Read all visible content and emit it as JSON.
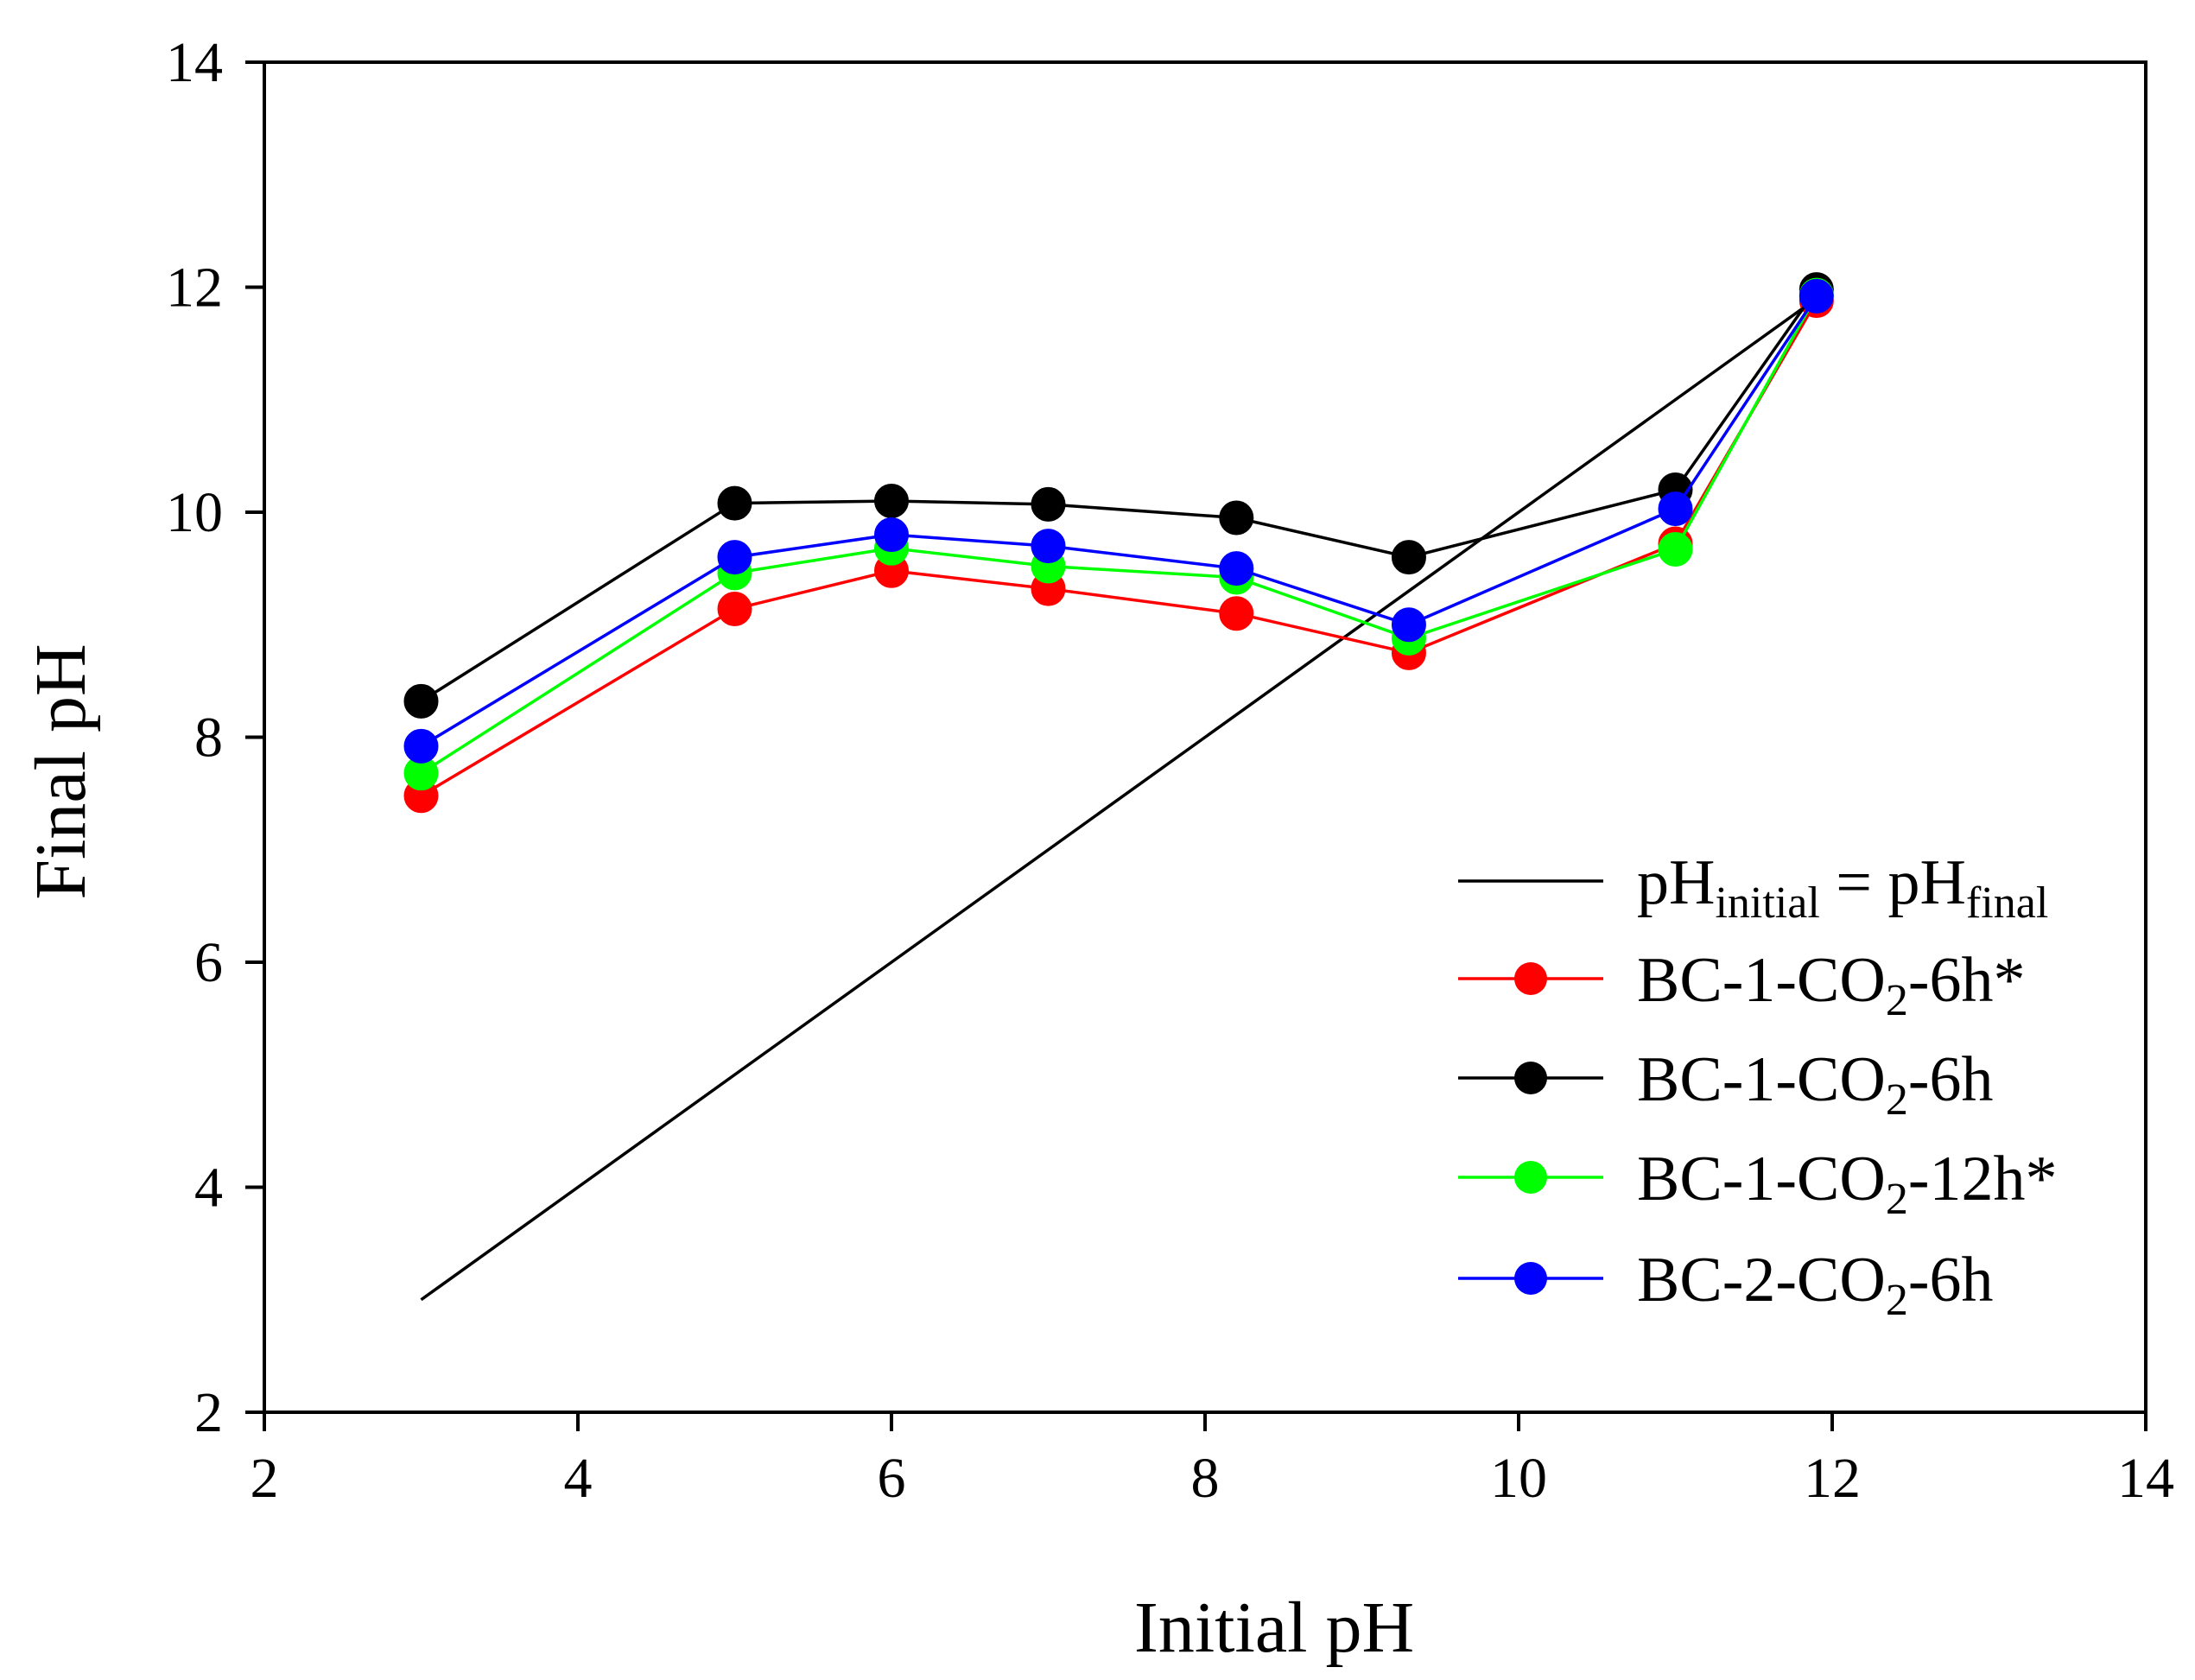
{
  "chart_data": {
    "type": "line",
    "title": "",
    "xlabel": "Initial pH",
    "ylabel": "Final pH",
    "xlim": [
      2,
      14
    ],
    "ylim": [
      2,
      14
    ],
    "xticks": [
      2,
      4,
      6,
      8,
      10,
      12,
      14
    ],
    "yticks": [
      2,
      4,
      6,
      8,
      10,
      12,
      14
    ],
    "xtick_labels": [
      "2",
      "4",
      "6",
      "8",
      "10",
      "12",
      "14"
    ],
    "ytick_labels": [
      "2",
      "4",
      "6",
      "8",
      "10",
      "12",
      "14"
    ],
    "grid": false,
    "legend_position": "right-center",
    "reference_line": {
      "name": "pH_initial = pH_final",
      "label_parts": [
        "pH",
        "initial",
        " = pH",
        "final"
      ],
      "color": "#000000",
      "x": [
        3,
        12
      ],
      "y": [
        3,
        12
      ]
    },
    "series": [
      {
        "name": "BC-1-CO2-6h*",
        "label_parts": [
          "BC-1-CO",
          "2",
          "-6h*"
        ],
        "color": "#ff0000",
        "x": [
          3.0,
          5.0,
          6.0,
          7.0,
          8.2,
          9.3,
          11.0,
          11.9
        ],
        "y": [
          7.48,
          9.14,
          9.48,
          9.32,
          9.1,
          8.75,
          9.72,
          11.88
        ]
      },
      {
        "name": "BC-1-CO2-6h",
        "label_parts": [
          "BC-1-CO",
          "2",
          "-6h"
        ],
        "color": "#000000",
        "x": [
          3.0,
          5.0,
          6.0,
          7.0,
          8.2,
          9.3,
          11.0,
          11.9
        ],
        "y": [
          8.32,
          10.08,
          10.1,
          10.07,
          9.95,
          9.6,
          10.2,
          11.98
        ]
      },
      {
        "name": "BC-1-CO2-12h*",
        "label_parts": [
          "BC-1-CO",
          "2",
          "-12h*"
        ],
        "color": "#00ff00",
        "x": [
          3.0,
          5.0,
          6.0,
          7.0,
          8.2,
          9.3,
          11.0,
          11.9
        ],
        "y": [
          7.68,
          9.46,
          9.68,
          9.52,
          9.42,
          8.88,
          9.67,
          11.93
        ]
      },
      {
        "name": "BC-2-CO2-6h",
        "label_parts": [
          "BC-2-CO",
          "2",
          "-6h"
        ],
        "color": "#0000ff",
        "x": [
          3.0,
          5.0,
          6.0,
          7.0,
          8.2,
          9.3,
          11.0,
          11.9
        ],
        "y": [
          7.92,
          9.6,
          9.8,
          9.7,
          9.5,
          9.0,
          10.03,
          11.92
        ]
      }
    ]
  }
}
